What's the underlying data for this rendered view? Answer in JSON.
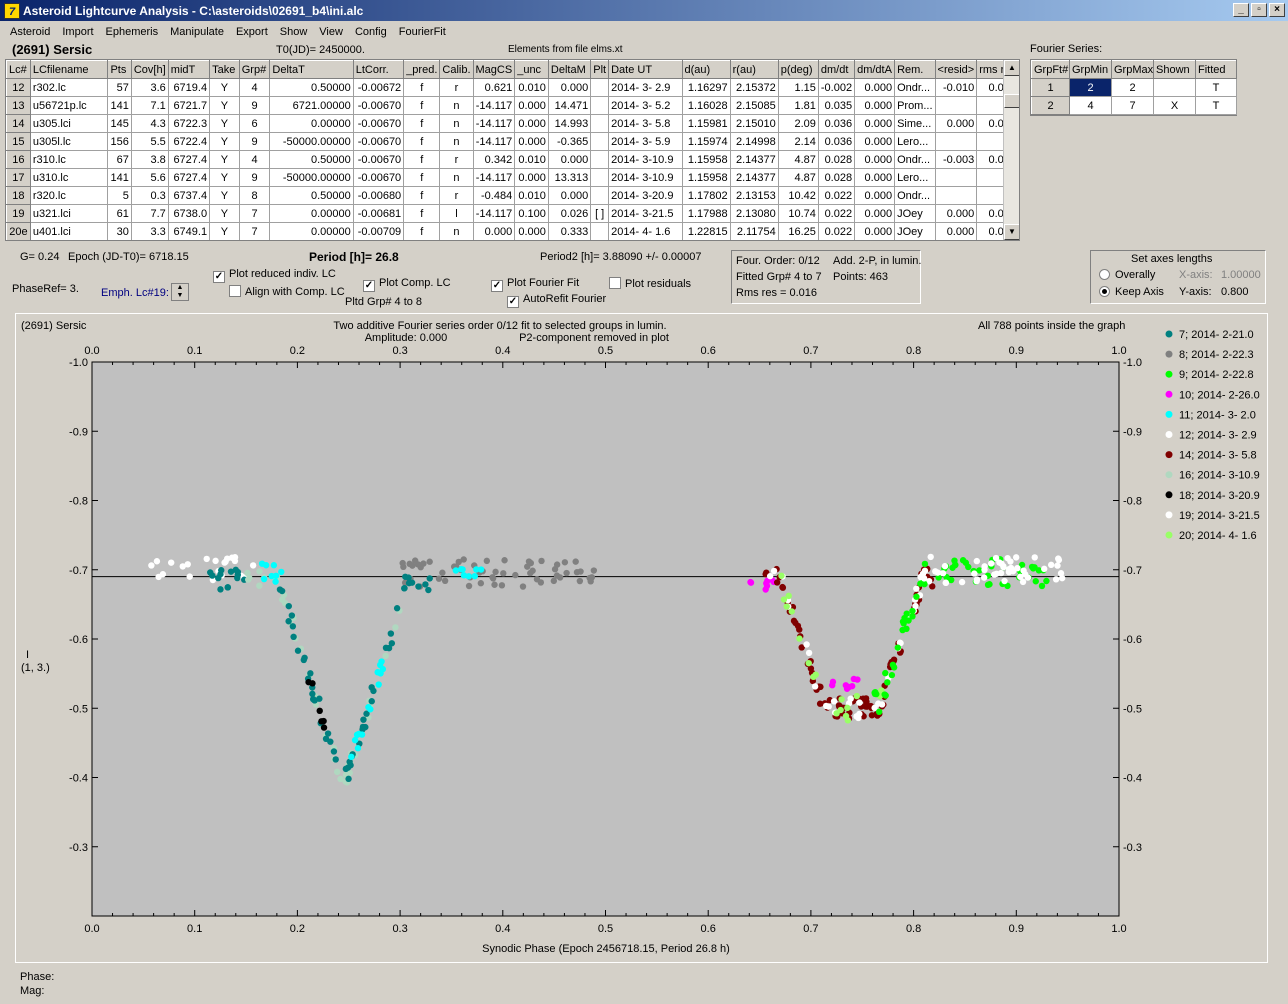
{
  "window": {
    "title": "Asteroid Lightcurve Analysis - C:\\asteroids\\02691_b4\\ini.alc",
    "min": "_",
    "max": "▫",
    "close": "×"
  },
  "menu": [
    "Asteroid",
    "Import",
    "Ephemeris",
    "Manipulate",
    "Export",
    "Show",
    "View",
    "Config",
    "FourierFit"
  ],
  "header": {
    "asteroid": "(2691) Sersic",
    "t0": "T0(JD)= 2450000.",
    "elements": "Elements from file elms.xt",
    "fourier_label": "Fourier Series:"
  },
  "grid": {
    "columns": [
      "Lc#",
      "LCfilename",
      "Pts",
      "Cov[h]",
      "midT",
      "Take",
      "Grp#",
      "DeltaT",
      "LtCorr.",
      "_pred.",
      "Calib.",
      "MagCS",
      "_unc",
      "DeltaM",
      "Plt",
      "Date UT",
      "d(au)",
      "r(au)",
      "p(deg)",
      "dm/dt",
      "dm/dtA",
      "Rem.",
      "<resid>",
      "rms res"
    ],
    "rows": [
      [
        "12",
        "r302.lc",
        "57",
        "3.6",
        "6719.4",
        "Y",
        "4",
        "0.50000",
        "-0.00672",
        "f",
        "r",
        "0.621",
        "0.010",
        "0.000",
        "",
        "2014- 3- 2.9",
        "1.16297",
        "2.15372",
        "1.15",
        "-0.002",
        "0.000",
        "Ondr...",
        "-0.010",
        "0.016"
      ],
      [
        "13",
        "u56721p.lc",
        "141",
        "7.1",
        "6721.7",
        "Y",
        "9",
        "6721.00000",
        "-0.00670",
        "f",
        "n",
        "-14.117",
        "0.000",
        "14.471",
        "",
        "2014- 3- 5.2",
        "1.16028",
        "2.15085",
        "1.81",
        "0.035",
        "0.000",
        "Prom...",
        "",
        ""
      ],
      [
        "14",
        "u305.lci",
        "145",
        "4.3",
        "6722.3",
        "Y",
        "6",
        "0.00000",
        "-0.00670",
        "f",
        "n",
        "-14.117",
        "0.000",
        "14.993",
        "",
        "2014- 3- 5.8",
        "1.15981",
        "2.15010",
        "2.09",
        "0.036",
        "0.000",
        "Sime...",
        "0.000",
        "0.015"
      ],
      [
        "15",
        "u305l.lc",
        "156",
        "5.5",
        "6722.4",
        "Y",
        "9",
        "-50000.00000",
        "-0.00670",
        "f",
        "n",
        "-14.117",
        "0.000",
        "-0.365",
        "",
        "2014- 3- 5.9",
        "1.15974",
        "2.14998",
        "2.14",
        "0.036",
        "0.000",
        "Lero...",
        "",
        ""
      ],
      [
        "16",
        "r310.lc",
        "67",
        "3.8",
        "6727.4",
        "Y",
        "4",
        "0.50000",
        "-0.00670",
        "f",
        "r",
        "0.342",
        "0.010",
        "0.000",
        "",
        "2014- 3-10.9",
        "1.15958",
        "2.14377",
        "4.87",
        "0.028",
        "0.000",
        "Ondr...",
        "-0.003",
        "0.008"
      ],
      [
        "17",
        "u310.lc",
        "141",
        "5.6",
        "6727.4",
        "Y",
        "9",
        "-50000.00000",
        "-0.00670",
        "f",
        "n",
        "-14.117",
        "0.000",
        "13.313",
        "",
        "2014- 3-10.9",
        "1.15958",
        "2.14377",
        "4.87",
        "0.028",
        "0.000",
        "Lero...",
        "",
        ""
      ],
      [
        "18",
        "r320.lc",
        "5",
        "0.3",
        "6737.4",
        "Y",
        "8",
        "0.50000",
        "-0.00680",
        "f",
        "r",
        "-0.484",
        "0.010",
        "0.000",
        "",
        "2014- 3-20.9",
        "1.17802",
        "2.13153",
        "10.42",
        "0.022",
        "0.000",
        "Ondr...",
        "",
        ""
      ],
      [
        "19",
        "u321.lci",
        "61",
        "7.7",
        "6738.0",
        "Y",
        "7",
        "0.00000",
        "-0.00681",
        "f",
        "l",
        "-14.117",
        "0.100",
        "0.026",
        "[ ]",
        "2014- 3-21.5",
        "1.17988",
        "2.13080",
        "10.74",
        "0.022",
        "0.000",
        "JOey",
        "0.000",
        "0.016"
      ],
      [
        "20e",
        "u401.lci",
        "30",
        "3.3",
        "6749.1",
        "Y",
        "7",
        "0.00000",
        "-0.00709",
        "f",
        "n",
        "0.000",
        "0.000",
        "0.333",
        "",
        "2014- 4- 1.6",
        "1.22815",
        "2.11754",
        "16.25",
        "0.022",
        "0.000",
        "JOey",
        "0.000",
        "0.006"
      ]
    ]
  },
  "fourier_table": {
    "columns": [
      "GrpFt#",
      "GrpMin",
      "GrpMax",
      "Shown",
      "Fitted"
    ],
    "rows": [
      [
        "1",
        "2",
        "2",
        "",
        "T"
      ],
      [
        "2",
        "4",
        "7",
        "X",
        "T"
      ]
    ]
  },
  "controls": {
    "g": "G= 0.24",
    "epoch": "Epoch (JD-T0)= 6718.15",
    "period": "Period [h]= 26.8",
    "period2": "Period2 [h]= 3.88090 +/- 0.00007",
    "phaseref": "PhaseRef= 3.",
    "emph": "Emph. Lc#19:",
    "plot_reduced": "Plot reduced indiv. LC",
    "align": "Align with Comp. LC",
    "plot_comp": "Plot Comp. LC",
    "pltd_grp": "Pltd Grp#  4  to   8",
    "plot_fourier": "Plot Fourier Fit",
    "autorefit": "AutoRefit Fourier",
    "plot_resid": "Plot residuals",
    "four_order": "Four. Order:  0/12",
    "add2p": "Add. 2-P, in lumin.",
    "fitted_grp": "Fitted Grp# 4 to 7",
    "points": "Points: 463",
    "rms": "Rms res     = 0.016",
    "axes_title": "Set axes lengths",
    "overally": "Overally",
    "keep_axis": "Keep Axis",
    "xaxis_lbl": "X-axis:",
    "xaxis_val": "1.00000",
    "yaxis_lbl": "Y-axis:",
    "yaxis_val": "0.800"
  },
  "plot": {
    "name": "(2691) Sersic",
    "title1": "Two additive Fourier series order 0/12 fit to selected groups in lumin.",
    "title2": "Amplitude: 0.000",
    "title3": "P2-component removed in plot",
    "inside": "All 788 points inside the graph",
    "ylabel1": "I",
    "ylabel2": "(1, 3.)",
    "xlabel": "Synodic Phase (Epoch 2456718.15, Period 26.8 h)"
  },
  "status": {
    "phase": "Phase:",
    "mag": "Mag:"
  },
  "chart_data": {
    "type": "scatter",
    "xlim": [
      0,
      1
    ],
    "ylim": [
      -1.0,
      -0.2
    ],
    "y_inverted": true,
    "xticks": [
      "0.0",
      "0.1",
      "0.2",
      "0.3",
      "0.4",
      "0.5",
      "0.6",
      "0.7",
      "0.8",
      "0.9",
      "1.0"
    ],
    "yticks": [
      "-1.0",
      "-0.9",
      "-0.8",
      "-0.7",
      "-0.6",
      "-0.5",
      "-0.4",
      "-0.3"
    ],
    "reference_line_y": -0.69,
    "series": [
      {
        "name": "7; 2014- 2-21.0",
        "color": "#008080"
      },
      {
        "name": "8; 2014- 2-22.3",
        "color": "#808080"
      },
      {
        "name": "9; 2014- 2-22.8",
        "color": "#00ff00"
      },
      {
        "name": "10; 2014- 2-26.0",
        "color": "#ff00ff"
      },
      {
        "name": "11; 2014- 3- 2.0",
        "color": "#00ffff"
      },
      {
        "name": "12; 2014- 3- 2.9",
        "color": "#ffffff"
      },
      {
        "name": "14; 2014- 3- 5.8",
        "color": "#800000"
      },
      {
        "name": "16; 2014- 3-10.9",
        "color": "#b0d8c0"
      },
      {
        "name": "18; 2014- 3-20.9",
        "color": "#000000"
      },
      {
        "name": "19; 2014- 3-21.5",
        "color": "#ffffff"
      },
      {
        "name": "20; 2014- 4- 1.6",
        "color": "#99ff66"
      }
    ]
  }
}
